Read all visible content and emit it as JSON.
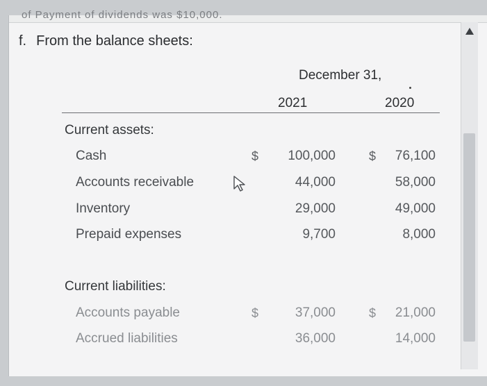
{
  "cut_text": "of Payment of dividends was $10,000.",
  "heading": {
    "label": "f.",
    "text": "From the balance sheets:"
  },
  "columns": {
    "date_header": "December 31,",
    "year1": "2021",
    "year2": "2020"
  },
  "current_assets": {
    "title": "Current assets:",
    "rows": [
      {
        "label": "Cash",
        "dollar1": "$",
        "v2021": "100,000",
        "dollar2": "$",
        "v2020": "76,100"
      },
      {
        "label": "Accounts receivable",
        "dollar1": "",
        "v2021": "44,000",
        "dollar2": "",
        "v2020": "58,000"
      },
      {
        "label": "Inventory",
        "dollar1": "",
        "v2021": "29,000",
        "dollar2": "",
        "v2020": "49,000"
      },
      {
        "label": "Prepaid expenses",
        "dollar1": "",
        "v2021": "9,700",
        "dollar2": "",
        "v2020": "8,000"
      }
    ]
  },
  "current_liabilities": {
    "title": "Current liabilities:",
    "rows": [
      {
        "label": "Accounts payable",
        "dollar1": "$",
        "v2021": "37,000",
        "dollar2": "$",
        "v2020": "21,000"
      },
      {
        "label": "Accrued liabilities",
        "dollar1": "",
        "v2021": "36,000",
        "dollar2": "",
        "v2020": "14,000"
      }
    ]
  },
  "icons": {
    "cursor": "mouse-pointer-icon",
    "scroll_up": "triangle-up-icon"
  }
}
